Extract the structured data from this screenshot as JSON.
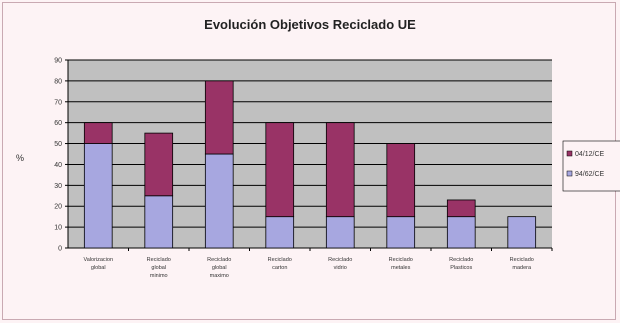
{
  "chart_data": {
    "type": "bar",
    "stacked": true,
    "title": "Evolución Objetivos Reciclado UE",
    "ylabel": "%",
    "xlabel": "",
    "ylim": [
      0,
      90
    ],
    "yticks": [
      0,
      10,
      20,
      30,
      40,
      50,
      60,
      70,
      80,
      90
    ],
    "grid": true,
    "legend_position": "right",
    "categories": [
      [
        "Valorizacion",
        "global"
      ],
      [
        "Reciclado",
        "global",
        "minimo"
      ],
      [
        "Reciclado",
        "global",
        "maximo"
      ],
      [
        "Reciclado",
        "carton"
      ],
      [
        "Reciclado",
        "vidrio"
      ],
      [
        "Reciclado",
        "metales"
      ],
      [
        "Reciclado",
        "Plasticos"
      ],
      [
        "Reciclado",
        "madera"
      ]
    ],
    "series": [
      {
        "name": "94/62/CE",
        "color": "#a7a7e0",
        "values": [
          50,
          25,
          45,
          15,
          15,
          15,
          15,
          15
        ]
      },
      {
        "name": "04/12/CE",
        "color": "#993366",
        "values": [
          10,
          30,
          35,
          45,
          45,
          35,
          8,
          0
        ]
      }
    ],
    "colors": {
      "plot_bg": "#c0c0c0",
      "frame_bg": "#fdf3f5",
      "gridline": "#000000"
    }
  }
}
